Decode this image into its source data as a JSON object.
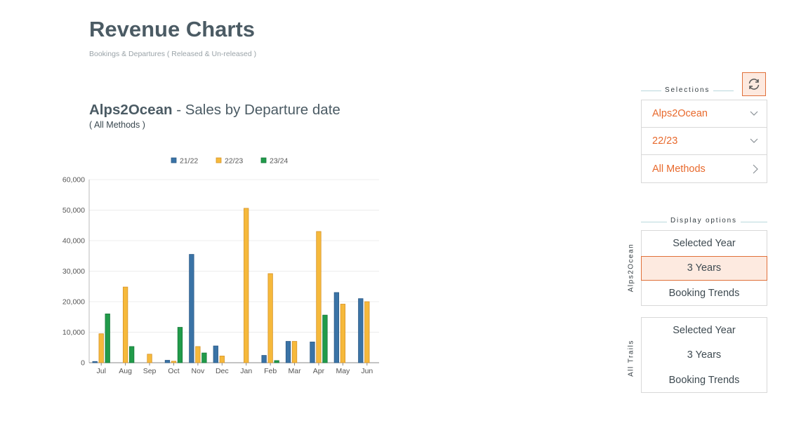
{
  "page": {
    "title": "Revenue Charts",
    "subtitle": "Bookings & Departures ( Released & Un-released )"
  },
  "chart_heading": {
    "brand": "Alps2Ocean",
    "rest": " - Sales by Departure date",
    "method": "( All Methods )"
  },
  "colors": {
    "s2122": "#3a73a6",
    "s2223": "#f6b93b",
    "s2324": "#219b4a",
    "accent": "#e8692c"
  },
  "chart_data": {
    "type": "bar",
    "categories": [
      "Jul",
      "Aug",
      "Sep",
      "Oct",
      "Nov",
      "Dec",
      "Jan",
      "Feb",
      "Mar",
      "Apr",
      "May",
      "Jun"
    ],
    "series": [
      {
        "name": "21/22",
        "values": [
          400,
          0,
          0,
          800,
          35500,
          5500,
          0,
          2400,
          7000,
          6800,
          23000,
          21000
        ]
      },
      {
        "name": "22/23",
        "values": [
          9500,
          24800,
          2800,
          500,
          5300,
          2200,
          50600,
          29200,
          7000,
          43000,
          19200,
          20000
        ]
      },
      {
        "name": "23/24",
        "values": [
          16000,
          5300,
          0,
          11600,
          3200,
          0,
          0,
          700,
          0,
          15600,
          0,
          0
        ]
      }
    ],
    "ylim": [
      0,
      60000
    ],
    "yticks": [
      "0",
      "10,000",
      "20,000",
      "30,000",
      "40,000",
      "50,000",
      "60,000"
    ],
    "yticks_values": [
      0,
      10000,
      20000,
      30000,
      40000,
      50000,
      60000
    ],
    "legend_position": "top",
    "grid": true
  },
  "panel": {
    "selections_label": "Selections",
    "refresh_icon": "refresh-icon",
    "selections": [
      {
        "label": "Alps2Ocean",
        "icon": "chevron-down-icon"
      },
      {
        "label": "22/23",
        "icon": "chevron-down-icon"
      },
      {
        "label": "All Methods",
        "icon": "chevron-right-icon"
      }
    ],
    "display_label": "Display options",
    "group1": {
      "label": "Alps2Ocean",
      "items": [
        "Selected Year",
        "3 Years",
        "Booking Trends"
      ],
      "active": "3 Years"
    },
    "group2": {
      "label": "All Trails",
      "items": [
        "Selected Year",
        "3 Years",
        "Booking Trends"
      ]
    }
  }
}
